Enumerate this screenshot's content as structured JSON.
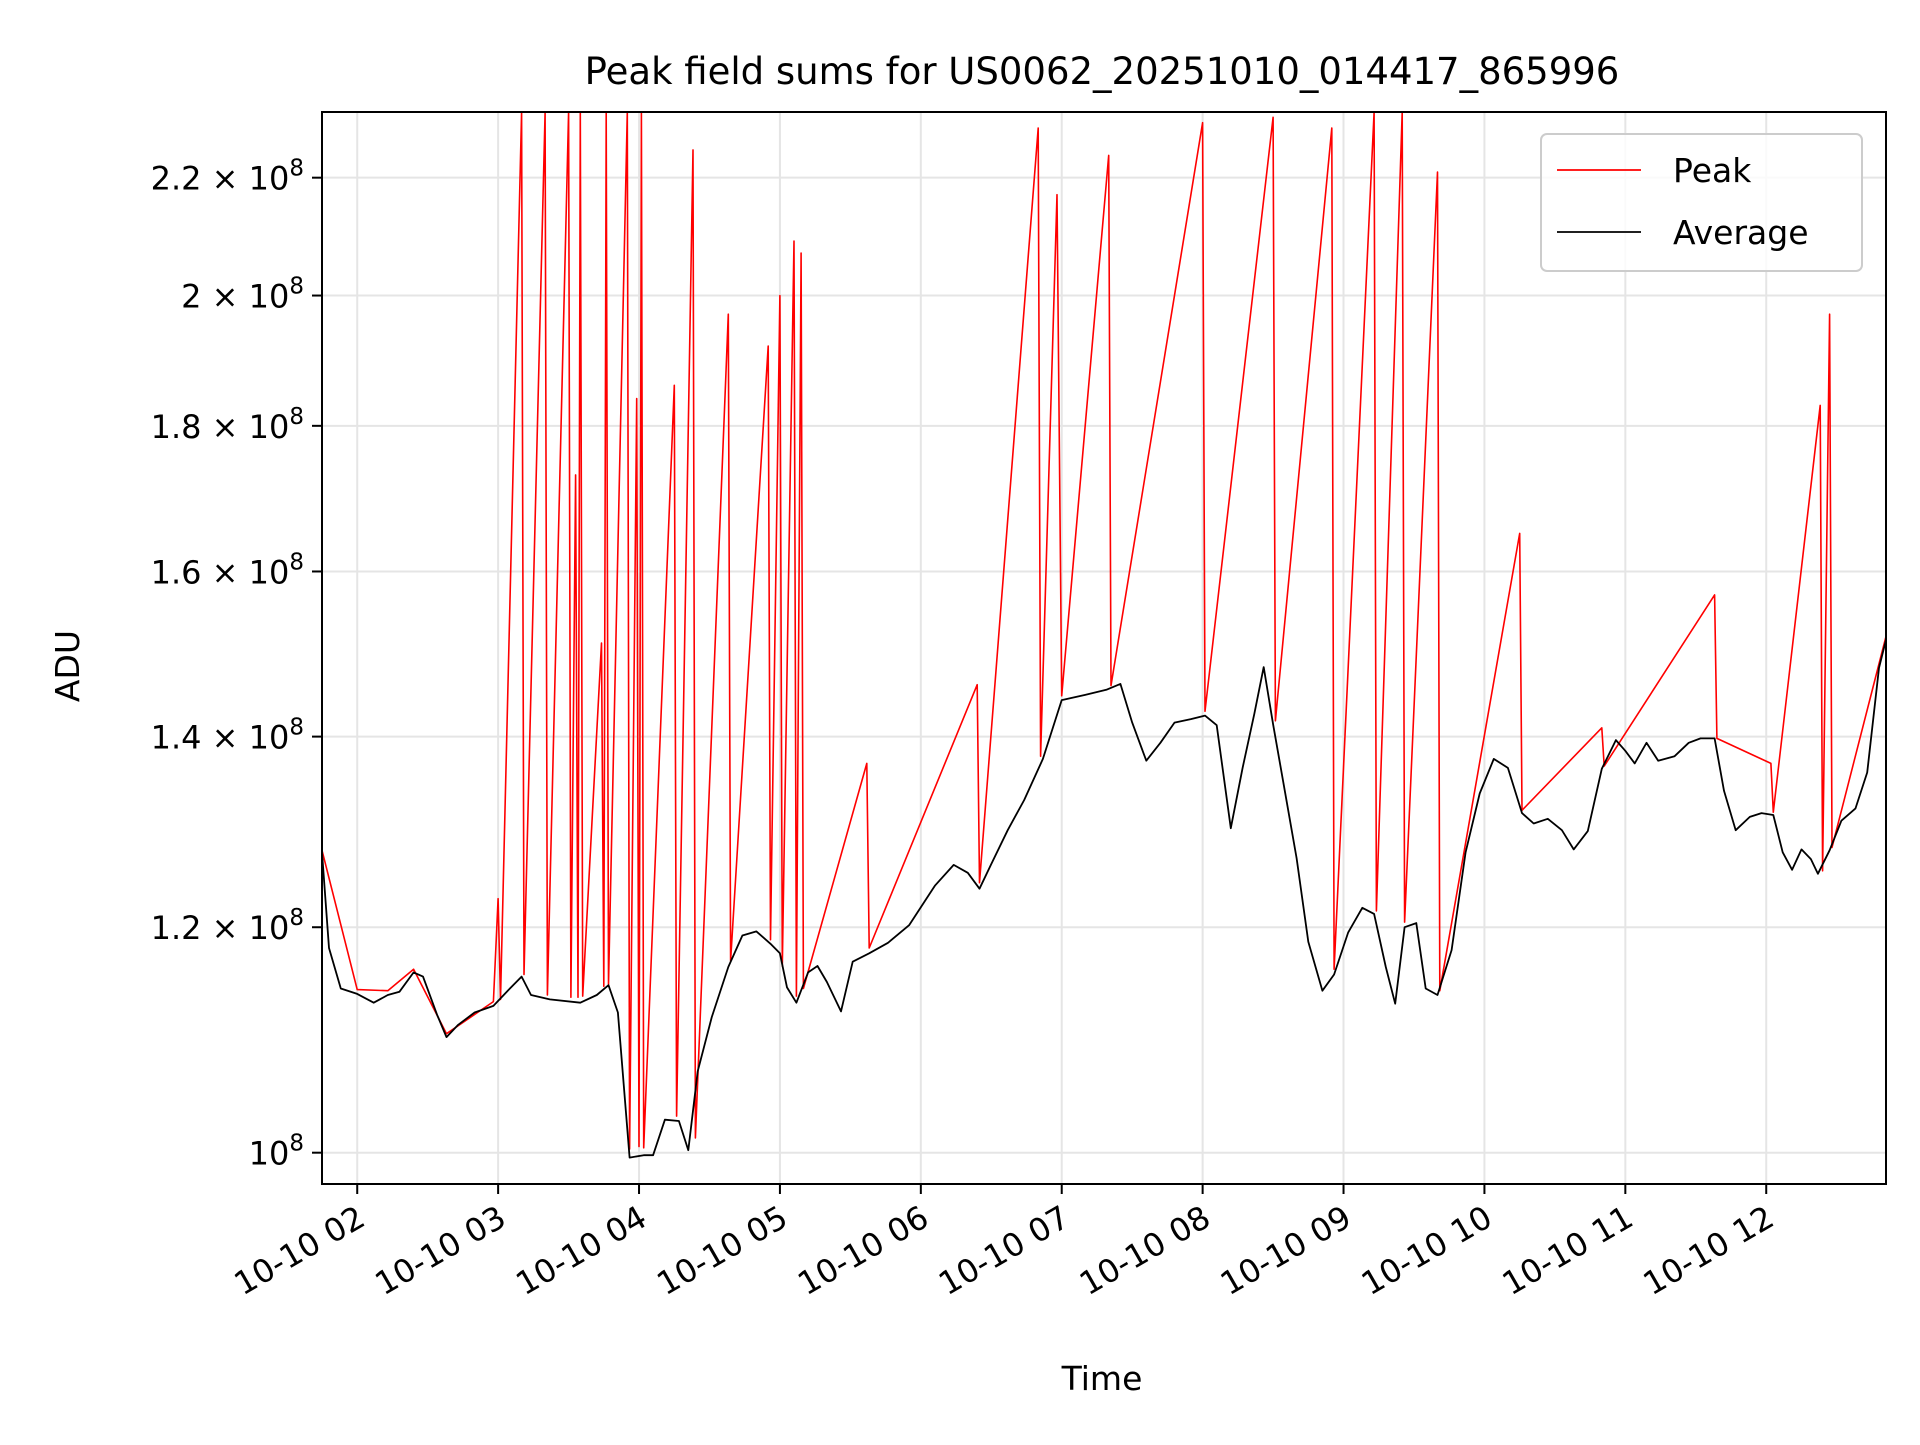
{
  "chart_data": {
    "type": "line",
    "title": "Peak field sums for US0062_20251010_014417_865996",
    "xlabel": "Time",
    "ylabel": "ADU",
    "y_scale": "log",
    "ylim": [
      97500000,
      232000000
    ],
    "xlim": [
      "2025-10-10 01:45",
      "2025-10-10 12:51"
    ],
    "grid": true,
    "legend_position": "top-right",
    "x_ticks": [
      {
        "t": "2025-10-10 02:00",
        "label": "10-10 02"
      },
      {
        "t": "2025-10-10 03:00",
        "label": "10-10 03"
      },
      {
        "t": "2025-10-10 04:00",
        "label": "10-10 04"
      },
      {
        "t": "2025-10-10 05:00",
        "label": "10-10 05"
      },
      {
        "t": "2025-10-10 06:00",
        "label": "10-10 06"
      },
      {
        "t": "2025-10-10 07:00",
        "label": "10-10 07"
      },
      {
        "t": "2025-10-10 08:00",
        "label": "10-10 08"
      },
      {
        "t": "2025-10-10 09:00",
        "label": "10-10 09"
      },
      {
        "t": "2025-10-10 10:00",
        "label": "10-10 10"
      },
      {
        "t": "2025-10-10 11:00",
        "label": "10-10 11"
      },
      {
        "t": "2025-10-10 12:00",
        "label": "10-10 12"
      }
    ],
    "y_ticks": [
      {
        "v": 100000000,
        "label": "10",
        "exp": "8",
        "mantissa": ""
      },
      {
        "v": 120000000,
        "label": "1.2 × 10",
        "exp": "8",
        "mantissa": "1.2"
      },
      {
        "v": 140000000,
        "label": "1.4 × 10",
        "exp": "8",
        "mantissa": "1.4"
      },
      {
        "v": 160000000,
        "label": "1.6 × 10",
        "exp": "8",
        "mantissa": "1.6"
      },
      {
        "v": 180000000,
        "label": "1.8 × 10",
        "exp": "8",
        "mantissa": "1.8"
      },
      {
        "v": 200000000,
        "label": "2 × 10",
        "exp": "8",
        "mantissa": "2"
      },
      {
        "v": 220000000,
        "label": "2.2 × 10",
        "exp": "8",
        "mantissa": "2.2"
      }
    ],
    "series": [
      {
        "name": "Average",
        "color": "#000000",
        "points": [
          [
            "2025-10-10 01:45",
            127500000
          ],
          [
            "2025-10-10 01:48",
            118000000
          ],
          [
            "2025-10-10 01:53",
            114200000
          ],
          [
            "2025-10-10 02:00",
            113700000
          ],
          [
            "2025-10-10 02:07",
            112900000
          ],
          [
            "2025-10-10 02:13",
            113600000
          ],
          [
            "2025-10-10 02:18",
            113900000
          ],
          [
            "2025-10-10 02:24",
            115700000
          ],
          [
            "2025-10-10 02:28",
            115300000
          ],
          [
            "2025-10-10 02:34",
            111800000
          ],
          [
            "2025-10-10 02:38",
            109800000
          ],
          [
            "2025-10-10 02:43",
            110900000
          ],
          [
            "2025-10-10 02:50",
            112000000
          ],
          [
            "2025-10-10 02:58",
            112600000
          ],
          [
            "2025-10-10 03:05",
            114200000
          ],
          [
            "2025-10-10 03:10",
            115300000
          ],
          [
            "2025-10-10 03:14",
            113600000
          ],
          [
            "2025-10-10 03:22",
            113200000
          ],
          [
            "2025-10-10 03:35",
            112900000
          ],
          [
            "2025-10-10 03:42",
            113600000
          ],
          [
            "2025-10-10 03:47",
            114500000
          ],
          [
            "2025-10-10 03:51",
            112000000
          ],
          [
            "2025-10-10 03:56",
            99600000
          ],
          [
            "2025-10-10 04:02",
            99800000
          ],
          [
            "2025-10-10 04:06",
            99800000
          ],
          [
            "2025-10-10 04:11",
            102700000
          ],
          [
            "2025-10-10 04:17",
            102600000
          ],
          [
            "2025-10-10 04:21",
            100200000
          ],
          [
            "2025-10-10 04:25",
            106800000
          ],
          [
            "2025-10-10 04:31",
            111600000
          ],
          [
            "2025-10-10 04:38",
            116200000
          ],
          [
            "2025-10-10 04:44",
            119200000
          ],
          [
            "2025-10-10 04:50",
            119600000
          ],
          [
            "2025-10-10 04:56",
            118400000
          ],
          [
            "2025-10-10 05:00",
            117500000
          ],
          [
            "2025-10-10 05:03",
            114300000
          ],
          [
            "2025-10-10 05:07",
            112900000
          ],
          [
            "2025-10-10 05:12",
            115700000
          ],
          [
            "2025-10-10 05:16",
            116300000
          ],
          [
            "2025-10-10 05:20",
            114800000
          ],
          [
            "2025-10-10 05:26",
            112100000
          ],
          [
            "2025-10-10 05:31",
            116700000
          ],
          [
            "2025-10-10 05:38",
            117500000
          ],
          [
            "2025-10-10 05:46",
            118500000
          ],
          [
            "2025-10-10 05:55",
            120200000
          ],
          [
            "2025-10-10 06:06",
            124100000
          ],
          [
            "2025-10-10 06:14",
            126200000
          ],
          [
            "2025-10-10 06:20",
            125400000
          ],
          [
            "2025-10-10 06:25",
            123800000
          ],
          [
            "2025-10-10 06:30",
            126300000
          ],
          [
            "2025-10-10 06:37",
            129800000
          ],
          [
            "2025-10-10 06:44",
            133000000
          ],
          [
            "2025-10-10 06:52",
            137500000
          ],
          [
            "2025-10-10 07:00",
            144200000
          ],
          [
            "2025-10-10 07:10",
            144800000
          ],
          [
            "2025-10-10 07:19",
            145400000
          ],
          [
            "2025-10-10 07:25",
            146100000
          ],
          [
            "2025-10-10 07:30",
            141600000
          ],
          [
            "2025-10-10 07:36",
            137300000
          ],
          [
            "2025-10-10 07:42",
            139300000
          ],
          [
            "2025-10-10 07:48",
            141600000
          ],
          [
            "2025-10-10 07:55",
            142000000
          ],
          [
            "2025-10-10 08:01",
            142400000
          ],
          [
            "2025-10-10 08:06",
            141300000
          ],
          [
            "2025-10-10 08:12",
            130000000
          ],
          [
            "2025-10-10 08:17",
            136500000
          ],
          [
            "2025-10-10 08:22",
            142600000
          ],
          [
            "2025-10-10 08:26",
            148100000
          ],
          [
            "2025-10-10 08:30",
            141400000
          ],
          [
            "2025-10-10 08:35",
            134000000
          ],
          [
            "2025-10-10 08:40",
            126900000
          ],
          [
            "2025-10-10 08:45",
            118600000
          ],
          [
            "2025-10-10 08:51",
            114000000
          ],
          [
            "2025-10-10 08:56",
            115500000
          ],
          [
            "2025-10-10 09:02",
            119500000
          ],
          [
            "2025-10-10 09:08",
            121900000
          ],
          [
            "2025-10-10 09:13",
            121300000
          ],
          [
            "2025-10-10 09:18",
            116200000
          ],
          [
            "2025-10-10 09:22",
            112800000
          ],
          [
            "2025-10-10 09:26",
            120000000
          ],
          [
            "2025-10-10 09:31",
            120400000
          ],
          [
            "2025-10-10 09:35",
            114200000
          ],
          [
            "2025-10-10 09:40",
            113600000
          ],
          [
            "2025-10-10 09:46",
            117800000
          ],
          [
            "2025-10-10 09:52",
            127500000
          ],
          [
            "2025-10-10 09:58",
            133700000
          ],
          [
            "2025-10-10 10:04",
            137500000
          ],
          [
            "2025-10-10 10:10",
            136500000
          ],
          [
            "2025-10-10 10:16",
            131600000
          ],
          [
            "2025-10-10 10:21",
            130500000
          ],
          [
            "2025-10-10 10:27",
            131000000
          ],
          [
            "2025-10-10 10:33",
            129800000
          ],
          [
            "2025-10-10 10:38",
            127800000
          ],
          [
            "2025-10-10 10:44",
            129700000
          ],
          [
            "2025-10-10 10:50",
            136400000
          ],
          [
            "2025-10-10 10:56",
            139600000
          ],
          [
            "2025-10-10 11:00",
            138400000
          ],
          [
            "2025-10-10 11:04",
            137000000
          ],
          [
            "2025-10-10 11:09",
            139300000
          ],
          [
            "2025-10-10 11:14",
            137300000
          ],
          [
            "2025-10-10 11:21",
            137800000
          ],
          [
            "2025-10-10 11:27",
            139300000
          ],
          [
            "2025-10-10 11:32",
            139800000
          ],
          [
            "2025-10-10 11:38",
            139800000
          ],
          [
            "2025-10-10 11:42",
            134000000
          ],
          [
            "2025-10-10 11:47",
            129800000
          ],
          [
            "2025-10-10 11:53",
            131200000
          ],
          [
            "2025-10-10 11:58",
            131600000
          ],
          [
            "2025-10-10 12:03",
            131400000
          ],
          [
            "2025-10-10 12:07",
            127500000
          ],
          [
            "2025-10-10 12:11",
            125700000
          ],
          [
            "2025-10-10 12:15",
            127800000
          ],
          [
            "2025-10-10 12:19",
            126800000
          ],
          [
            "2025-10-10 12:22",
            125300000
          ],
          [
            "2025-10-10 12:27",
            127700000
          ],
          [
            "2025-10-10 12:32",
            130800000
          ],
          [
            "2025-10-10 12:38",
            132100000
          ],
          [
            "2025-10-10 12:43",
            136000000
          ],
          [
            "2025-10-10 12:48",
            148000000
          ],
          [
            "2025-10-10 12:51",
            151400000
          ]
        ]
      },
      {
        "name": "Peak",
        "color": "#ff0000",
        "points": [
          [
            "2025-10-10 01:45",
            127700000
          ],
          [
            "2025-10-10 02:00",
            114100000
          ],
          [
            "2025-10-10 02:13",
            114000000
          ],
          [
            "2025-10-10 02:24",
            116000000
          ],
          [
            "2025-10-10 02:38",
            110100000
          ],
          [
            "2025-10-10 02:58",
            113000000
          ],
          [
            "2025-10-10 03:00",
            122800000
          ],
          [
            "2025-10-10 03:01",
            113200000
          ],
          [
            "2025-10-10 03:10",
            232000000
          ],
          [
            "2025-10-10 03:11",
            115500000
          ],
          [
            "2025-10-10 03:20",
            232000000
          ],
          [
            "2025-10-10 03:21",
            113600000
          ],
          [
            "2025-10-10 03:30",
            232000000
          ],
          [
            "2025-10-10 03:31",
            113400000
          ],
          [
            "2025-10-10 03:33",
            173000000
          ],
          [
            "2025-10-10 03:34",
            113400000
          ],
          [
            "2025-10-10 03:35",
            232000000
          ],
          [
            "2025-10-10 03:36",
            113500000
          ],
          [
            "2025-10-10 03:44",
            151000000
          ],
          [
            "2025-10-10 03:45",
            114400000
          ],
          [
            "2025-10-10 03:46",
            232000000
          ],
          [
            "2025-10-10 03:47",
            114600000
          ],
          [
            "2025-10-10 03:55",
            232000000
          ],
          [
            "2025-10-10 03:56",
            100300000
          ],
          [
            "2025-10-10 03:59",
            184000000
          ],
          [
            "2025-10-10 04:00",
            100500000
          ],
          [
            "2025-10-10 04:01",
            232000000
          ],
          [
            "2025-10-10 04:02",
            100400000
          ],
          [
            "2025-10-10 04:15",
            186000000
          ],
          [
            "2025-10-10 04:16",
            103000000
          ],
          [
            "2025-10-10 04:23",
            225000000
          ],
          [
            "2025-10-10 04:24",
            101200000
          ],
          [
            "2025-10-10 04:38",
            197000000
          ],
          [
            "2025-10-10 04:39",
            116800000
          ],
          [
            "2025-10-10 04:55",
            192000000
          ],
          [
            "2025-10-10 04:56",
            118800000
          ],
          [
            "2025-10-10 05:00",
            200000000
          ],
          [
            "2025-10-10 05:01",
            116300000
          ],
          [
            "2025-10-10 05:06",
            209000000
          ],
          [
            "2025-10-10 05:07",
            113500000
          ],
          [
            "2025-10-10 05:09",
            207000000
          ],
          [
            "2025-10-10 05:10",
            114200000
          ],
          [
            "2025-10-10 05:37",
            137000000
          ],
          [
            "2025-10-10 05:38",
            118000000
          ],
          [
            "2025-10-10 06:24",
            146000000
          ],
          [
            "2025-10-10 06:25",
            124400000
          ],
          [
            "2025-10-10 06:50",
            229000000
          ],
          [
            "2025-10-10 06:51",
            137800000
          ],
          [
            "2025-10-10 06:58",
            217000000
          ],
          [
            "2025-10-10 07:00",
            144700000
          ],
          [
            "2025-10-10 07:20",
            224000000
          ],
          [
            "2025-10-10 07:21",
            145900000
          ],
          [
            "2025-10-10 08:00",
            230000000
          ],
          [
            "2025-10-10 08:01",
            142900000
          ],
          [
            "2025-10-10 08:30",
            231000000
          ],
          [
            "2025-10-10 08:31",
            141800000
          ],
          [
            "2025-10-10 08:55",
            229000000
          ],
          [
            "2025-10-10 08:56",
            116000000
          ],
          [
            "2025-10-10 09:13",
            232000000
          ],
          [
            "2025-10-10 09:14",
            121600000
          ],
          [
            "2025-10-10 09:25",
            232000000
          ],
          [
            "2025-10-10 09:26",
            120500000
          ],
          [
            "2025-10-10 09:40",
            221000000
          ],
          [
            "2025-10-10 09:41",
            114000000
          ],
          [
            "2025-10-10 10:15",
            165000000
          ],
          [
            "2025-10-10 10:16",
            131900000
          ],
          [
            "2025-10-10 10:50",
            141000000
          ],
          [
            "2025-10-10 10:51",
            136700000
          ],
          [
            "2025-10-10 11:38",
            157000000
          ],
          [
            "2025-10-10 11:39",
            139800000
          ],
          [
            "2025-10-10 12:02",
            137000000
          ],
          [
            "2025-10-10 12:03",
            131700000
          ],
          [
            "2025-10-10 12:23",
            183000000
          ],
          [
            "2025-10-10 12:24",
            125600000
          ],
          [
            "2025-10-10 12:27",
            197000000
          ],
          [
            "2025-10-10 12:28",
            128000000
          ],
          [
            "2025-10-10 12:51",
            151800000
          ]
        ]
      }
    ]
  }
}
